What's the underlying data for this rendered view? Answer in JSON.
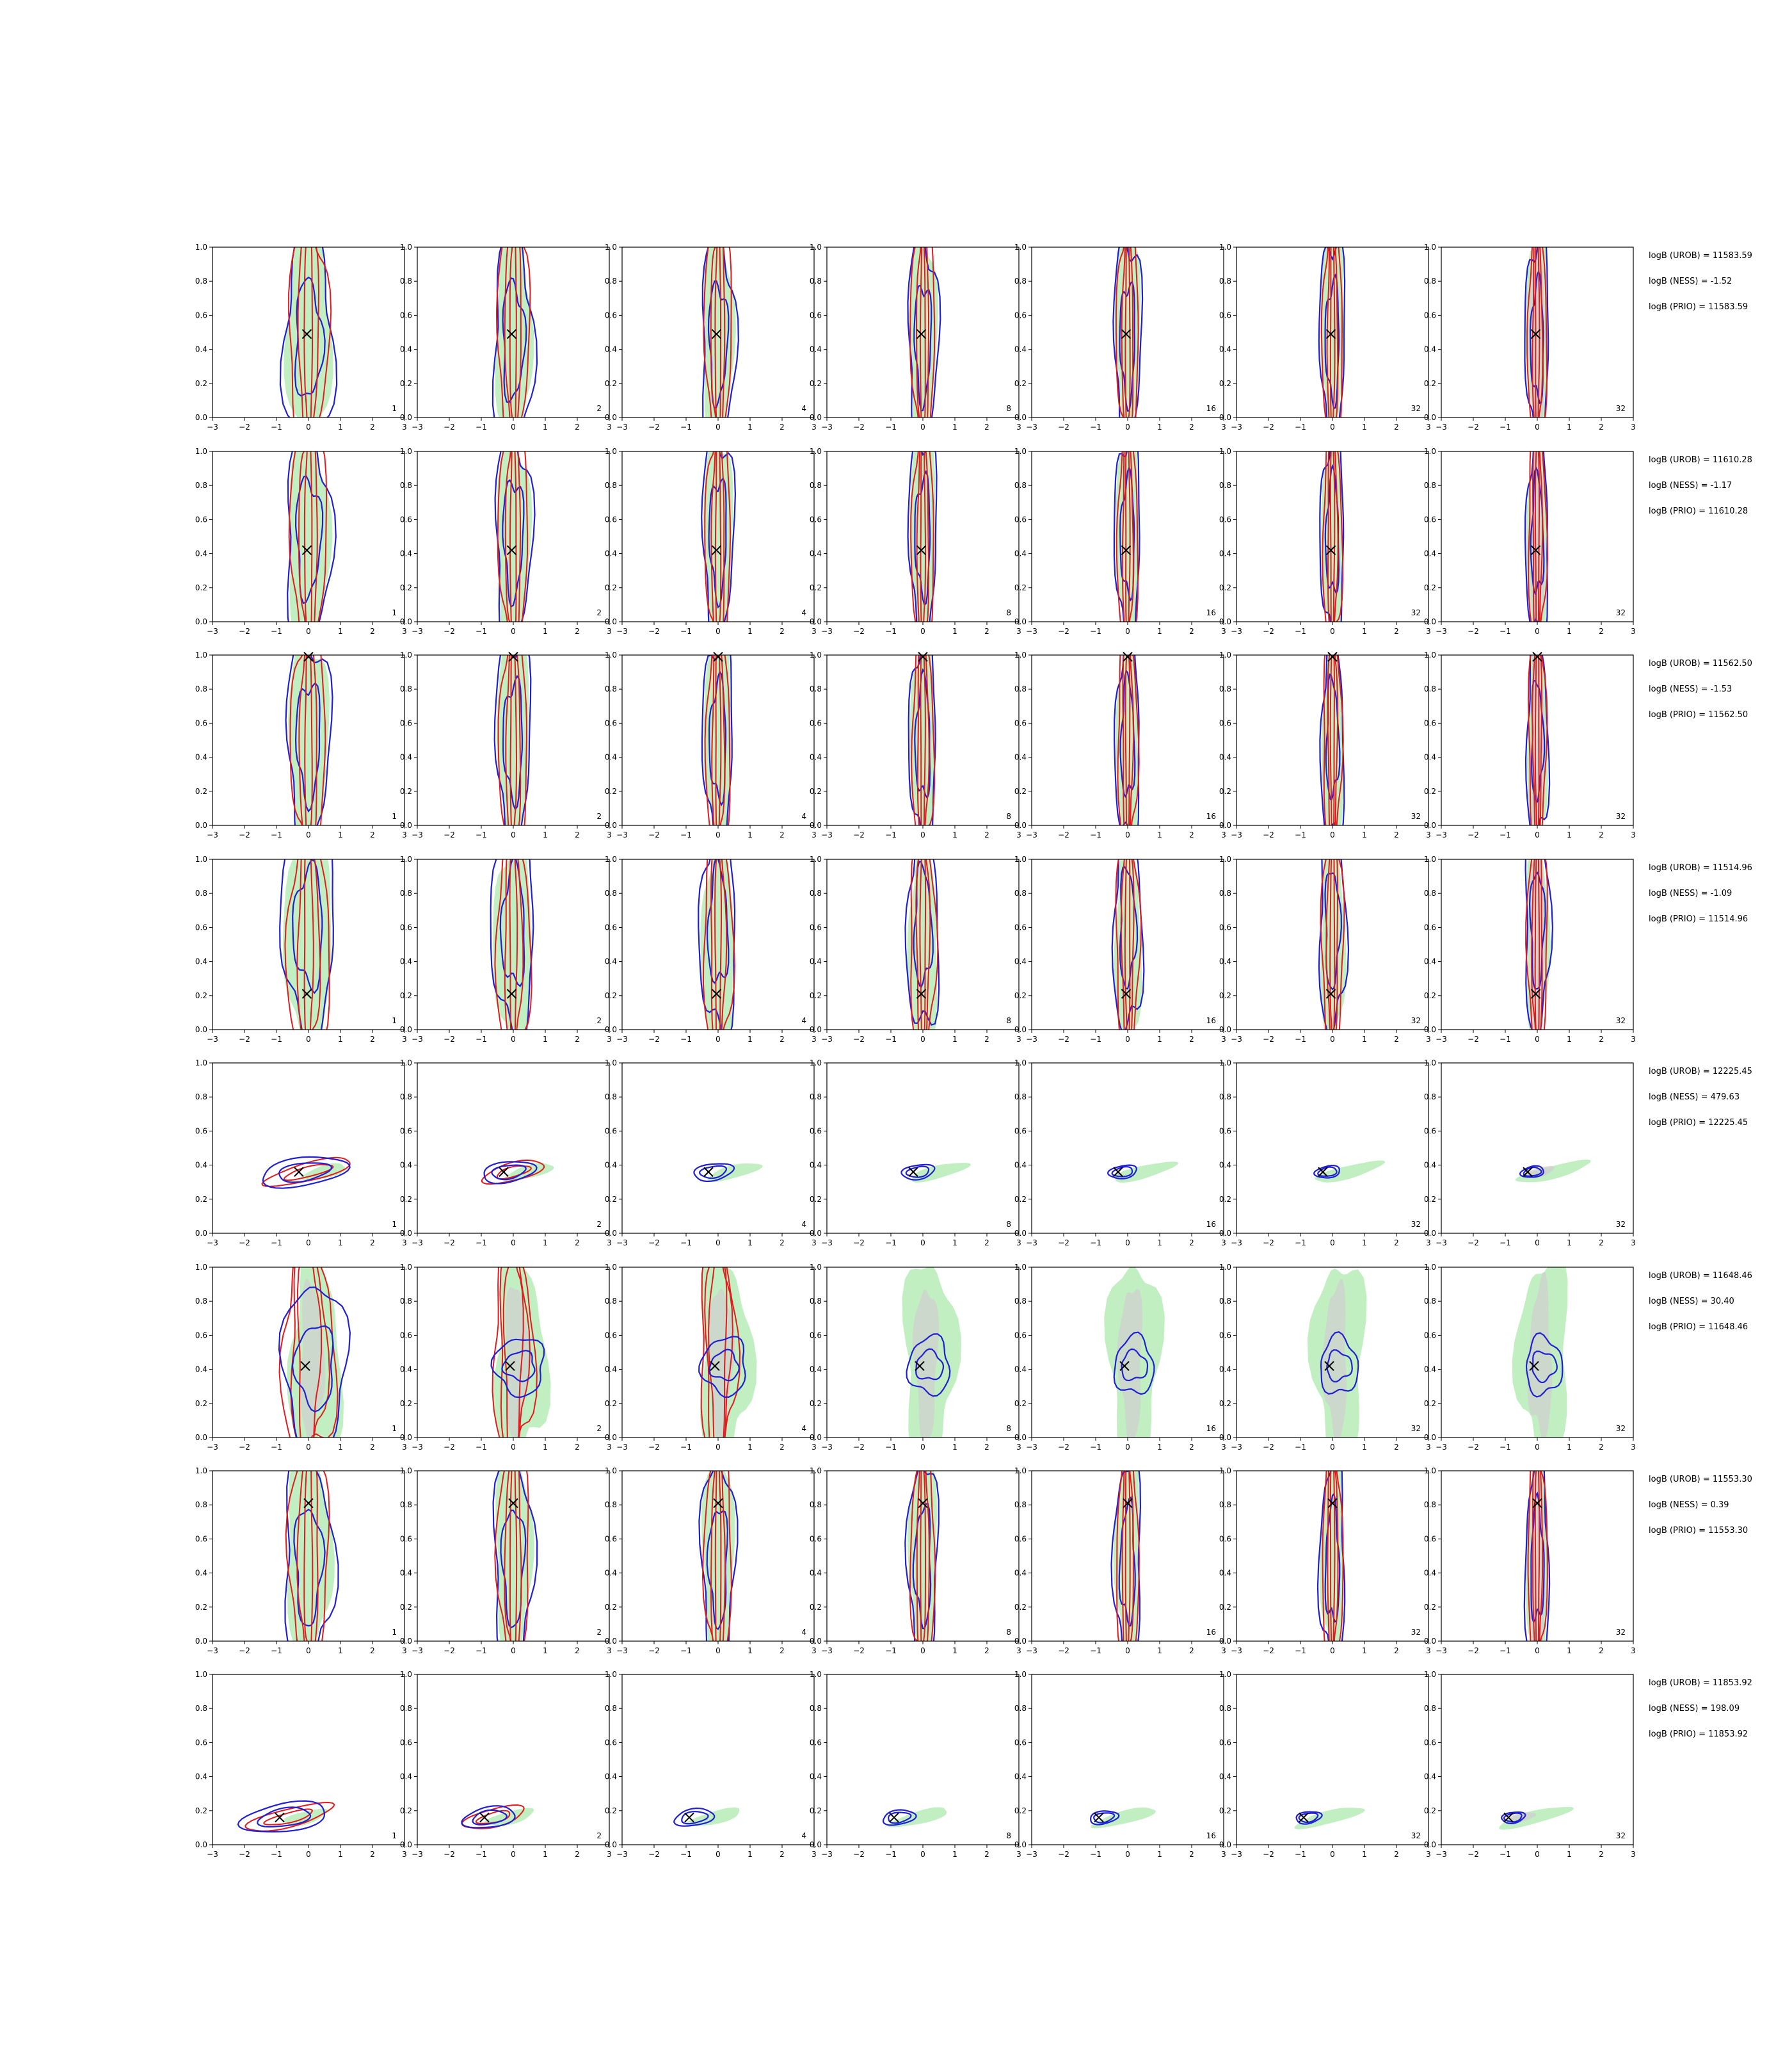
{
  "chart_data": {
    "type": "contour-grid",
    "xlim": [
      -3,
      3
    ],
    "ylim": [
      0,
      1
    ],
    "xticks": [
      "−3",
      "−2",
      "−1",
      "0",
      "1",
      "2",
      "3"
    ],
    "yticks": [
      "0.0",
      "0.2",
      "0.4",
      "0.6",
      "0.8",
      "1.0"
    ],
    "column_labels": [
      "1",
      "2",
      "4",
      "8",
      "16",
      "32",
      "32"
    ],
    "colors": {
      "red_contour": "#e41a1c",
      "blue_contour": "#1f1fd6",
      "green_fill": "#b6ecb6",
      "gray_fill": "#cfcfcf",
      "marker": "#000000"
    },
    "rows": [
      {
        "truth": [
          -0.05,
          0.49
        ],
        "mode": "vertical",
        "width": 0.9,
        "center": 0.45,
        "annotations": [
          "logB (UROB) = 11583.59",
          "logB (NESS) = -1.52",
          "logB (PRIO) = 11583.59"
        ]
      },
      {
        "truth": [
          -0.05,
          0.42
        ],
        "mode": "vertical",
        "width": 0.8,
        "center": 0.5,
        "annotations": [
          "logB (UROB) = 11610.28",
          "logB (NESS) = -1.17",
          "logB (PRIO) = 11610.28"
        ]
      },
      {
        "truth": [
          0.0,
          0.99
        ],
        "mode": "vertical",
        "width": 0.75,
        "center": 0.5,
        "annotations": [
          "logB (UROB) = 11562.50",
          "logB (NESS) = -1.53",
          "logB (PRIO) = 11562.50"
        ]
      },
      {
        "truth": [
          -0.05,
          0.21
        ],
        "mode": "vertical",
        "width": 1.0,
        "center": 0.6,
        "annotations": [
          "logB (UROB) = 11514.96",
          "logB (NESS) = -1.09",
          "logB (PRIO) = 11514.96"
        ]
      },
      {
        "truth": [
          -0.3,
          0.36
        ],
        "mode": "ellipse",
        "width": 1.2,
        "center": 0.36,
        "annotations": [
          "logB (UROB) = 12225.45",
          "logB (NESS) = 479.63",
          "logB (PRIO) = 12225.45"
        ]
      },
      {
        "truth": [
          -0.1,
          0.42
        ],
        "mode": "blob",
        "width": 0.9,
        "center": 0.42,
        "annotations": [
          "logB (UROB) = 11648.46",
          "logB (NESS) = 30.40",
          "logB (PRIO) = 11648.46"
        ]
      },
      {
        "truth": [
          0.0,
          0.81
        ],
        "mode": "vertical",
        "width": 0.9,
        "center": 0.45,
        "annotations": [
          "logB (UROB) = 11553.30",
          "logB (NESS) = 0.39",
          "logB (PRIO) = 11553.30"
        ]
      },
      {
        "truth": [
          -0.9,
          0.16
        ],
        "mode": "ellipse-low",
        "width": 1.0,
        "center": 0.16,
        "annotations": [
          "logB (UROB) = 11853.92",
          "logB (NESS) = 198.09",
          "logB (PRIO) = 11853.92"
        ]
      }
    ]
  }
}
